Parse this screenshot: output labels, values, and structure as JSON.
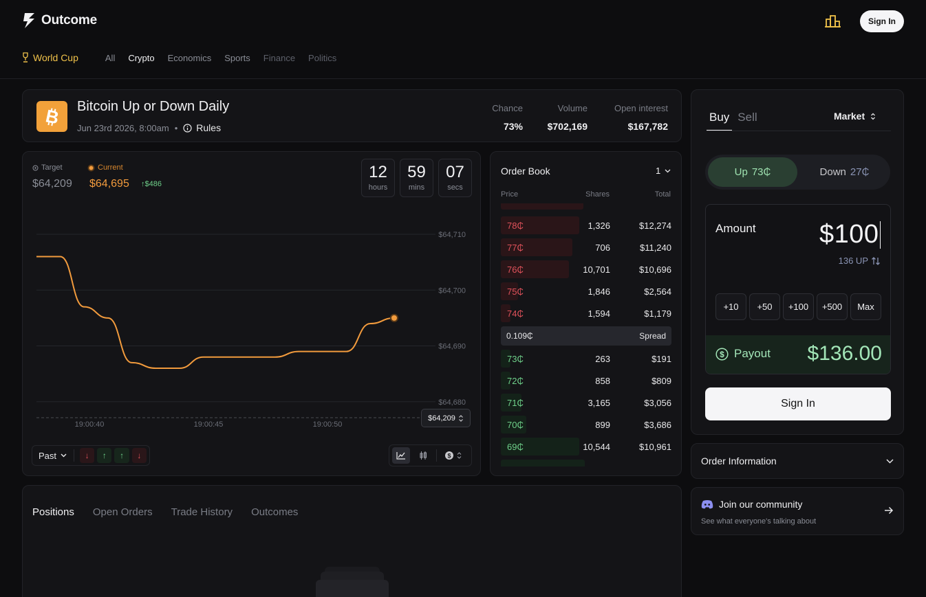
{
  "header": {
    "brand": "Outcome",
    "signin_label": "Sign In",
    "nav": [
      "World Cup",
      "All",
      "Crypto",
      "Economics",
      "Sports",
      "Finance",
      "Politics"
    ]
  },
  "market": {
    "title": "Bitcoin Up or Down Daily",
    "date": "Jun 23rd 2026, 8:00am",
    "rules": "Rules",
    "stats": [
      {
        "label": "Chance",
        "value": "73%"
      },
      {
        "label": "Volume",
        "value": "$702,169"
      },
      {
        "label": "Open interest",
        "value": "$167,782"
      }
    ]
  },
  "chart": {
    "target_label": "Target",
    "target_value": "$64,209",
    "current_label": "Current",
    "current_value": "$64,695",
    "delta": "$486",
    "countdown": [
      {
        "n": "12",
        "u": "hours"
      },
      {
        "n": "59",
        "u": "mins"
      },
      {
        "n": "07",
        "u": "secs"
      }
    ],
    "y_ticks": [
      "$64,710",
      "$64,700",
      "$64,690",
      "$64,680"
    ],
    "x_ticks": [
      "19:00:40",
      "19:00:45",
      "19:00:50"
    ],
    "target_pill": "$64,209",
    "past_label": "Past"
  },
  "chart_data": {
    "type": "line",
    "title": "",
    "xlabel": "",
    "ylabel": "",
    "x": [
      "19:00:38",
      "19:00:39",
      "19:00:40",
      "19:00:41",
      "19:00:42",
      "19:00:43",
      "19:00:44",
      "19:00:45",
      "19:00:46",
      "19:00:47",
      "19:00:48",
      "19:00:49",
      "19:00:50",
      "19:00:51",
      "19:00:52",
      "19:00:53"
    ],
    "series": [
      {
        "values": [
          64706,
          64706,
          64697,
          64695,
          64687,
          64686,
          64686,
          64688,
          64688,
          64688,
          64688,
          64689,
          64689,
          64689,
          64694,
          64695
        ]
      }
    ],
    "ylim": [
      64678,
      64710
    ],
    "reference_line": 64209,
    "grid": true
  },
  "orderbook": {
    "title": "Order Book",
    "selector": "1",
    "headers": {
      "price": "Price",
      "shares": "Shares",
      "total": "Total"
    },
    "asks": [
      {
        "price": "78₵",
        "shares": "1,326",
        "total": "$12,274",
        "depth": 0.46
      },
      {
        "price": "77₵",
        "shares": "706",
        "total": "$11,240",
        "depth": 0.42
      },
      {
        "price": "76₵",
        "shares": "10,701",
        "total": "$10,696",
        "depth": 0.4
      },
      {
        "price": "75₵",
        "shares": "1,846",
        "total": "$2,564",
        "depth": 0.1
      },
      {
        "price": "74₵",
        "shares": "1,594",
        "total": "$1,179",
        "depth": 0.05
      }
    ],
    "spread": {
      "value": "0.109₵",
      "label": "Spread"
    },
    "bids": [
      {
        "price": "73₵",
        "shares": "263",
        "total": "$191",
        "depth": 0.02
      },
      {
        "price": "72₵",
        "shares": "858",
        "total": "$809",
        "depth": 0.04
      },
      {
        "price": "71₵",
        "shares": "3,165",
        "total": "$3,056",
        "depth": 0.12
      },
      {
        "price": "70₵",
        "shares": "899",
        "total": "$3,686",
        "depth": 0.15
      },
      {
        "price": "69₵",
        "shares": "10,544",
        "total": "$10,961",
        "depth": 0.46
      }
    ]
  },
  "positions": {
    "tabs": [
      "Positions",
      "Open Orders",
      "Trade History",
      "Outcomes"
    ]
  },
  "trade": {
    "buy": "Buy",
    "sell": "Sell",
    "order_type": "Market",
    "up_label": "Up",
    "up_price": "73₵",
    "down_label": "Down",
    "down_price": "27₵",
    "amount_label": "Amount",
    "amount_value": "$100",
    "amount_sub": "136 UP",
    "quick": [
      "+10",
      "+50",
      "+100",
      "+500",
      "Max"
    ],
    "payout_label": "Payout",
    "payout_value": "$136.00",
    "signin_label": "Sign In"
  },
  "order_info": {
    "label": "Order Information"
  },
  "community": {
    "title": "Join our community",
    "subtitle": "See what everyone's talking about"
  }
}
